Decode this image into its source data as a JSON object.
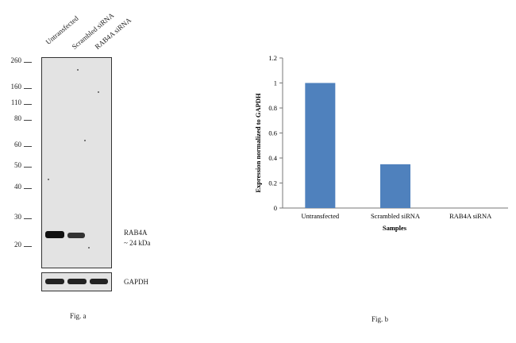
{
  "fig_a": {
    "lanes": [
      "Untransfected",
      "Scrambled siRNA",
      "RAB4A siRNA"
    ],
    "mw_markers": [
      "260",
      "160",
      "110",
      "80",
      "60",
      "50",
      "40",
      "30",
      "20"
    ],
    "target_label": "RAB4A",
    "target_size": "~ 24 kDa",
    "loading_label": "GAPDH",
    "caption": "Fig. a"
  },
  "fig_b": {
    "caption": "Fig. b"
  },
  "colors": {
    "bar": "#4f81bd",
    "band": "#111111"
  },
  "chart_data": {
    "type": "bar",
    "categories": [
      "Untransfected",
      "Scrambled siRNA",
      "RAB4A siRNA"
    ],
    "values": [
      1.0,
      0.35,
      0.0
    ],
    "title": "",
    "xlabel": "Samples",
    "ylabel": "Expression  normalized to GAPDH",
    "ylim": [
      0,
      1.2
    ],
    "yticks": [
      0,
      0.2,
      0.4,
      0.6,
      0.8,
      1,
      1.2
    ],
    "ytick_labels": [
      "0",
      "0.2",
      "0.4",
      "0.6",
      "0.8",
      "1",
      "1.2"
    ],
    "grid": false,
    "legend": "none"
  }
}
